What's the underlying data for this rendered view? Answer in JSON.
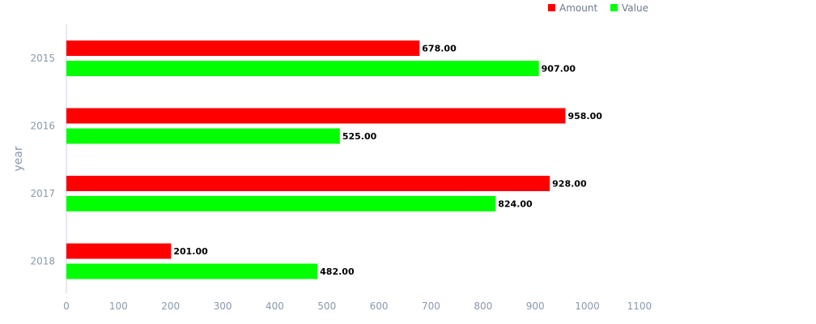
{
  "chart_data": {
    "type": "bar",
    "orientation": "horizontal",
    "title": "",
    "xlabel": "",
    "ylabel": "year",
    "categories": [
      "2015",
      "2016",
      "2017",
      "2018"
    ],
    "series": [
      {
        "name": "Amount",
        "color": "#ff0000",
        "values": [
          678,
          958,
          928,
          201
        ]
      },
      {
        "name": "Value",
        "color": "#00ff00",
        "values": [
          907,
          525,
          824,
          482
        ]
      }
    ],
    "xlim": [
      0,
      1100
    ],
    "xticks": [
      0,
      100,
      200,
      300,
      400,
      500,
      600,
      700,
      800,
      900,
      1000,
      1100
    ],
    "grid": false,
    "legend": "top",
    "data_label_format": "2 decimals"
  }
}
